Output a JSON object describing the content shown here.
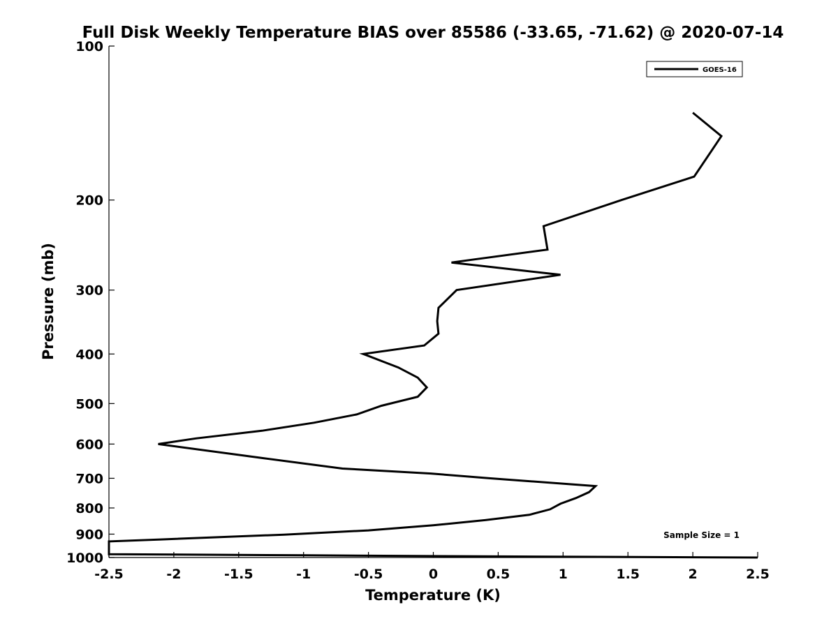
{
  "chart_data": {
    "type": "line",
    "title": "Full Disk Weekly Temperature BIAS over 85586 (-33.65, -71.62) @ 2020-07-14",
    "xlabel": "Temperature (K)",
    "ylabel": "Pressure (mb)",
    "xlim": [
      -2.5,
      2.5
    ],
    "ylim": [
      1000,
      100
    ],
    "y_scale": "log",
    "grid": false,
    "legend_position": "top-right",
    "x_ticks": [
      -2.5,
      -2,
      -1.5,
      -1,
      -0.5,
      0,
      0.5,
      1,
      1.5,
      2,
      2.5
    ],
    "x_tick_labels": [
      "-2.5",
      "-2",
      "-1.5",
      "-1",
      "-0.5",
      "0",
      "0.5",
      "1",
      "1.5",
      "2",
      "2.5"
    ],
    "y_ticks": [
      100,
      200,
      300,
      400,
      500,
      600,
      700,
      800,
      900,
      1000
    ],
    "y_tick_labels": [
      "100",
      "200",
      "300",
      "400",
      "500",
      "600",
      "700",
      "800",
      "900",
      "1000"
    ],
    "annotation": "Sample Size = 1",
    "series": [
      {
        "name": "GOES-16",
        "color": "#000000",
        "points": [
          [
            2.0,
            135
          ],
          [
            2.22,
            150
          ],
          [
            2.01,
            180
          ],
          [
            1.45,
            200
          ],
          [
            0.85,
            225
          ],
          [
            0.88,
            250
          ],
          [
            0.14,
            265
          ],
          [
            0.98,
            280
          ],
          [
            0.18,
            300
          ],
          [
            0.04,
            325
          ],
          [
            0.03,
            345
          ],
          [
            0.04,
            365
          ],
          [
            -0.07,
            385
          ],
          [
            -0.54,
            400
          ],
          [
            -0.27,
            425
          ],
          [
            -0.12,
            445
          ],
          [
            -0.05,
            465
          ],
          [
            -0.12,
            485
          ],
          [
            -0.4,
            505
          ],
          [
            -0.59,
            525
          ],
          [
            -0.92,
            545
          ],
          [
            -1.32,
            565
          ],
          [
            -1.83,
            585
          ],
          [
            -2.12,
            600
          ],
          [
            -1.3,
            640
          ],
          [
            -0.7,
            670
          ],
          [
            -0.02,
            685
          ],
          [
            0.44,
            700
          ],
          [
            1.25,
            725
          ],
          [
            1.2,
            745
          ],
          [
            1.1,
            765
          ],
          [
            0.98,
            785
          ],
          [
            0.9,
            805
          ],
          [
            0.74,
            825
          ],
          [
            0.4,
            845
          ],
          [
            0.0,
            865
          ],
          [
            -0.5,
            885
          ],
          [
            -1.15,
            902
          ],
          [
            -2.1,
            922
          ],
          [
            -2.5,
            930
          ],
          [
            -2.5,
            985
          ],
          [
            -1.0,
            990
          ],
          [
            0.5,
            995
          ],
          [
            2.5,
            1000
          ]
        ]
      }
    ]
  }
}
